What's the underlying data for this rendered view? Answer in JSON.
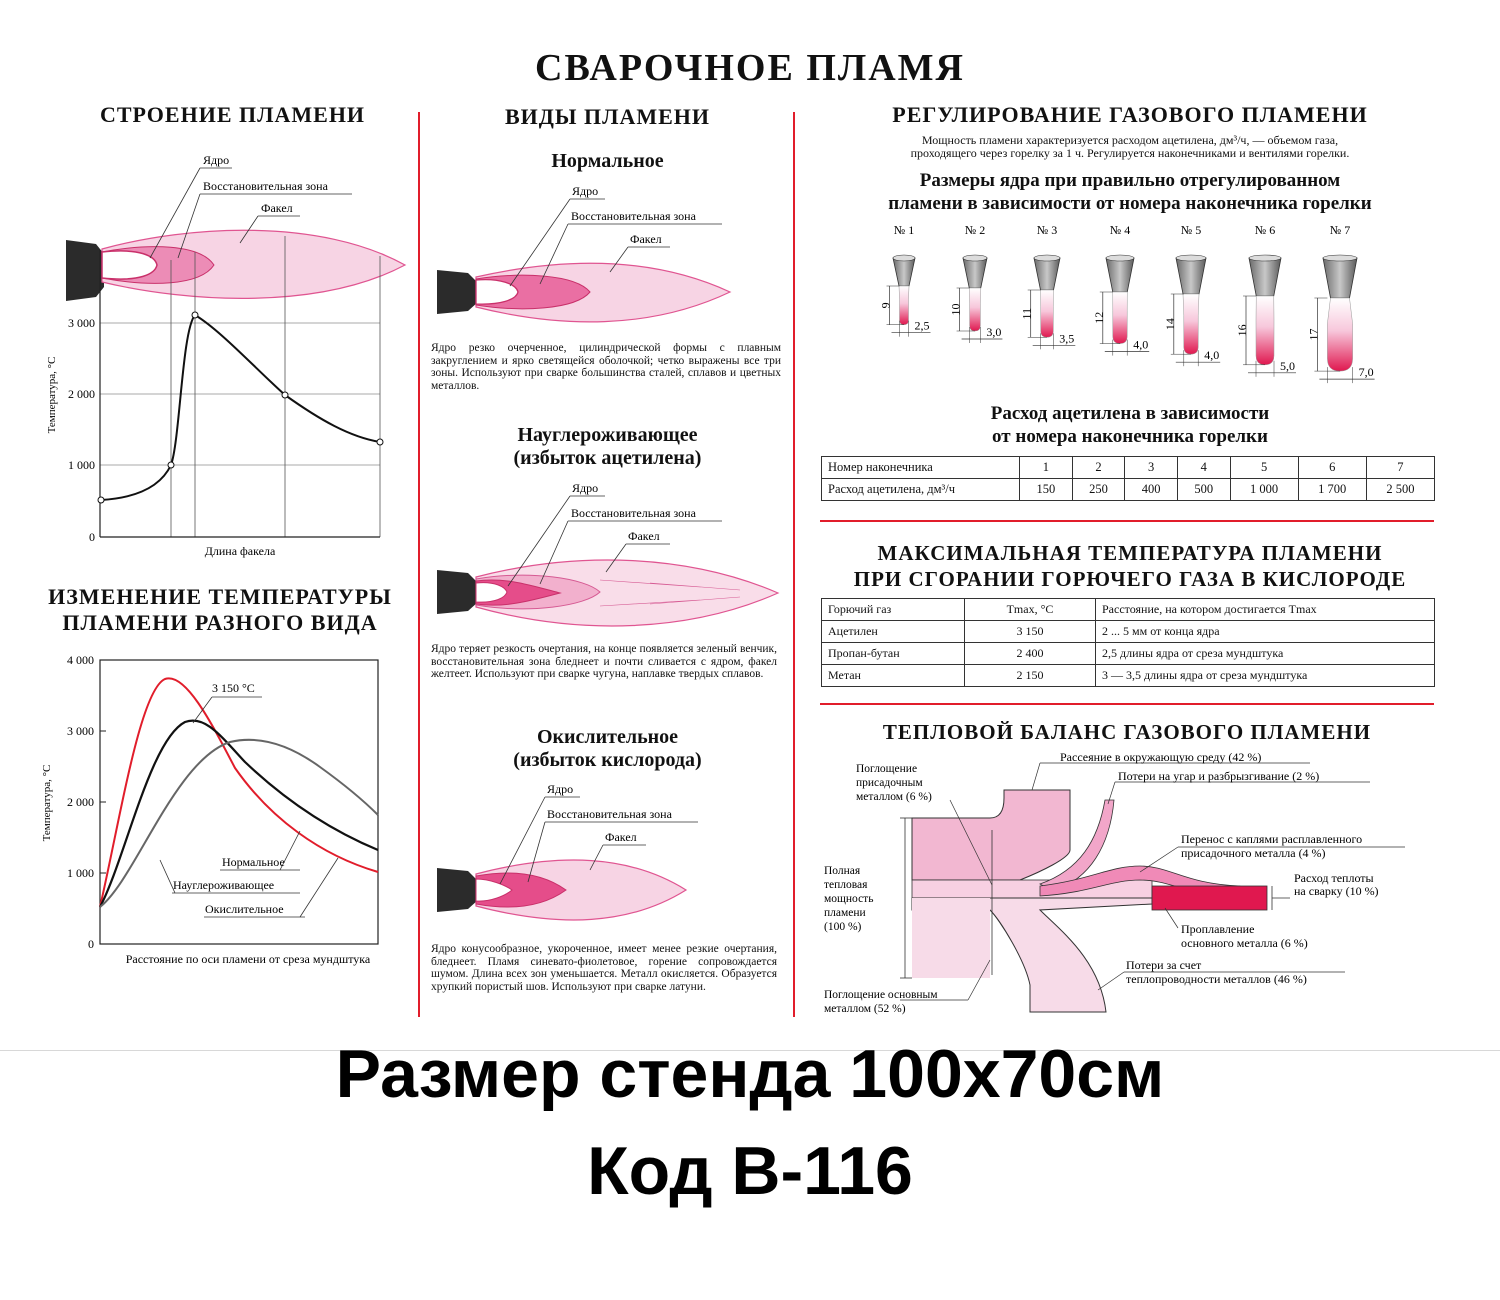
{
  "title": "СВАРОЧНОЕ ПЛАМЯ",
  "structure": {
    "heading": "СТРОЕНИЕ ПЛАМЕНИ",
    "labels": {
      "core": "Ядро",
      "reduce": "Восстановительная зона",
      "torch": "Факел"
    },
    "ylabel": "Температура, °С",
    "xlabel": "Длина факела",
    "yticks": [
      "3 000",
      "2 000",
      "1 000",
      "0"
    ]
  },
  "temp_change": {
    "heading1": "ИЗМЕНЕНИЕ ТЕМПЕРАТУРЫ",
    "heading2": "ПЛАМЕНИ РАЗНОГО ВИДА",
    "ylabel": "Температура, °С",
    "xlabel": "Расстояние по оси пламени от среза мундштука",
    "yticks": [
      "4 000",
      "3 000",
      "2 000",
      "1 000",
      "0"
    ],
    "peak_label": "3 150 °С",
    "series_labels": [
      "Нормальное",
      "Науглероживающее",
      "Окислительное"
    ]
  },
  "types": {
    "heading": "ВИДЫ ПЛАМЕНИ",
    "normal": {
      "title": "Нормальное",
      "text": "Ядро резко очерченное, цилиндрической формы с плавным закруглением и ярко светящейся оболочкой; четко выражены все три зоны. Используют при сварке большинства сталей, сплавов и цветных металлов."
    },
    "carb": {
      "title1": "Науглероживающее",
      "title2": "(избыток ацетилена)",
      "text": "Ядро теряет резкость очертания, на конце появляется зеленый венчик, восстановительная зона бледнеет и почти сливается с ядром, факел желтеет. Используют при сварке чугуна, наплавке твердых сплавов."
    },
    "oxid": {
      "title1": "Окислительное",
      "title2": "(избыток кислорода)",
      "text": "Ядро конусообразное, укороченное, имеет менее резкие очертания, бледнеет. Пламя синевато-фиолетовое, горение сопровождается шумом. Длина всех зон уменьшается. Металл окисляется. Образуется хрупкий пористый шов. Используют при сварке латуни."
    },
    "labels": {
      "core": "Ядро",
      "reduce": "Восстановительная зона",
      "torch": "Факел"
    }
  },
  "regulation": {
    "heading": "РЕГУЛИРОВАНИЕ ГАЗОВОГО ПЛАМЕНИ",
    "text1": "Мощность пламени характеризуется расходом ацетилена, дм³/ч, — объемом газа,",
    "text2": "проходящего через горелку за 1 ч. Регулируется наконечниками и вентилями горелки.",
    "sizes_title1": "Размеры ядра при правильно отрегулированном",
    "sizes_title2": "пламени в зависимости от номера наконечника горелки",
    "tips": [
      {
        "num": "№ 1",
        "len": "9",
        "dia": "2,5"
      },
      {
        "num": "№ 2",
        "len": "10",
        "dia": "3,0"
      },
      {
        "num": "№ 3",
        "len": "11",
        "dia": "3,5"
      },
      {
        "num": "№ 4",
        "len": "12",
        "dia": "4,0"
      },
      {
        "num": "№ 5",
        "len": "14",
        "dia": "4,0"
      },
      {
        "num": "№ 6",
        "len": "16",
        "dia": "5,0"
      },
      {
        "num": "№ 7",
        "len": "17",
        "dia": "7,0"
      }
    ],
    "flow_title1": "Расход ацетилена в зависимости",
    "flow_title2": "от номера наконечника горелки",
    "flow_table": {
      "row1_label": "Номер наконечника",
      "row2_label": "Расход ацетилена, дм³/ч",
      "numbers": [
        "1",
        "2",
        "3",
        "4",
        "5",
        "6",
        "7"
      ],
      "flows": [
        "150",
        "250",
        "400",
        "500",
        "1 000",
        "1 700",
        "2 500"
      ]
    }
  },
  "max_temp": {
    "heading1": "МАКСИМАЛЬНАЯ ТЕМПЕРАТУРА ПЛАМЕНИ",
    "heading2": "ПРИ СГОРАНИИ ГОРЮЧЕГО ГАЗА В КИСЛОРОДЕ",
    "headers": [
      "Горючий газ",
      "Tmax, °С",
      "Расстояние, на котором достигается Tmax"
    ],
    "rows": [
      [
        "Ацетилен",
        "3 150",
        "2 ... 5 мм от конца ядра"
      ],
      [
        "Пропан-бутан",
        "2 400",
        "2,5 длины ядра от среза мундштука"
      ],
      [
        "Метан",
        "2 150",
        "3 — 3,5 длины ядра от среза мундштука"
      ]
    ]
  },
  "balance": {
    "heading": "ТЕПЛОВОЙ БАЛАНС ГАЗОВОГО ПЛАМЕНИ",
    "filler1": "Поглощение",
    "filler2": "присадочным",
    "filler3": "металлом (6 %)",
    "env": "Рассеяние в окружающую среду (42 %)",
    "spatter": "Потери на угар и разбрызгивание (2 %)",
    "transfer1": "Перенос с каплями расплавленного",
    "transfer2": "присадочного металла (4 %)",
    "total1": "Полная",
    "total2": "тепловая",
    "total3": "мощность",
    "total4": "пламени",
    "total5": "(100 %)",
    "weld1": "Расход теплоты",
    "weld2": "на сварку (10 %)",
    "melt1": "Проплавление",
    "melt2": "основного металла (6 %)",
    "cond1": "Потери за счет",
    "cond2": "теплопроводности металлов (46 %)",
    "base1": "Поглощение основным",
    "base2": "металлом (52 %)"
  },
  "footer": {
    "line1": "Размер стенда 100х70см",
    "line2": "Код В-116"
  },
  "colors": {
    "accent": "#e11d2b",
    "pink_light": "#f7d0e2",
    "pink_mid": "#ee9cc1",
    "pink_core": "#e23c7e"
  }
}
